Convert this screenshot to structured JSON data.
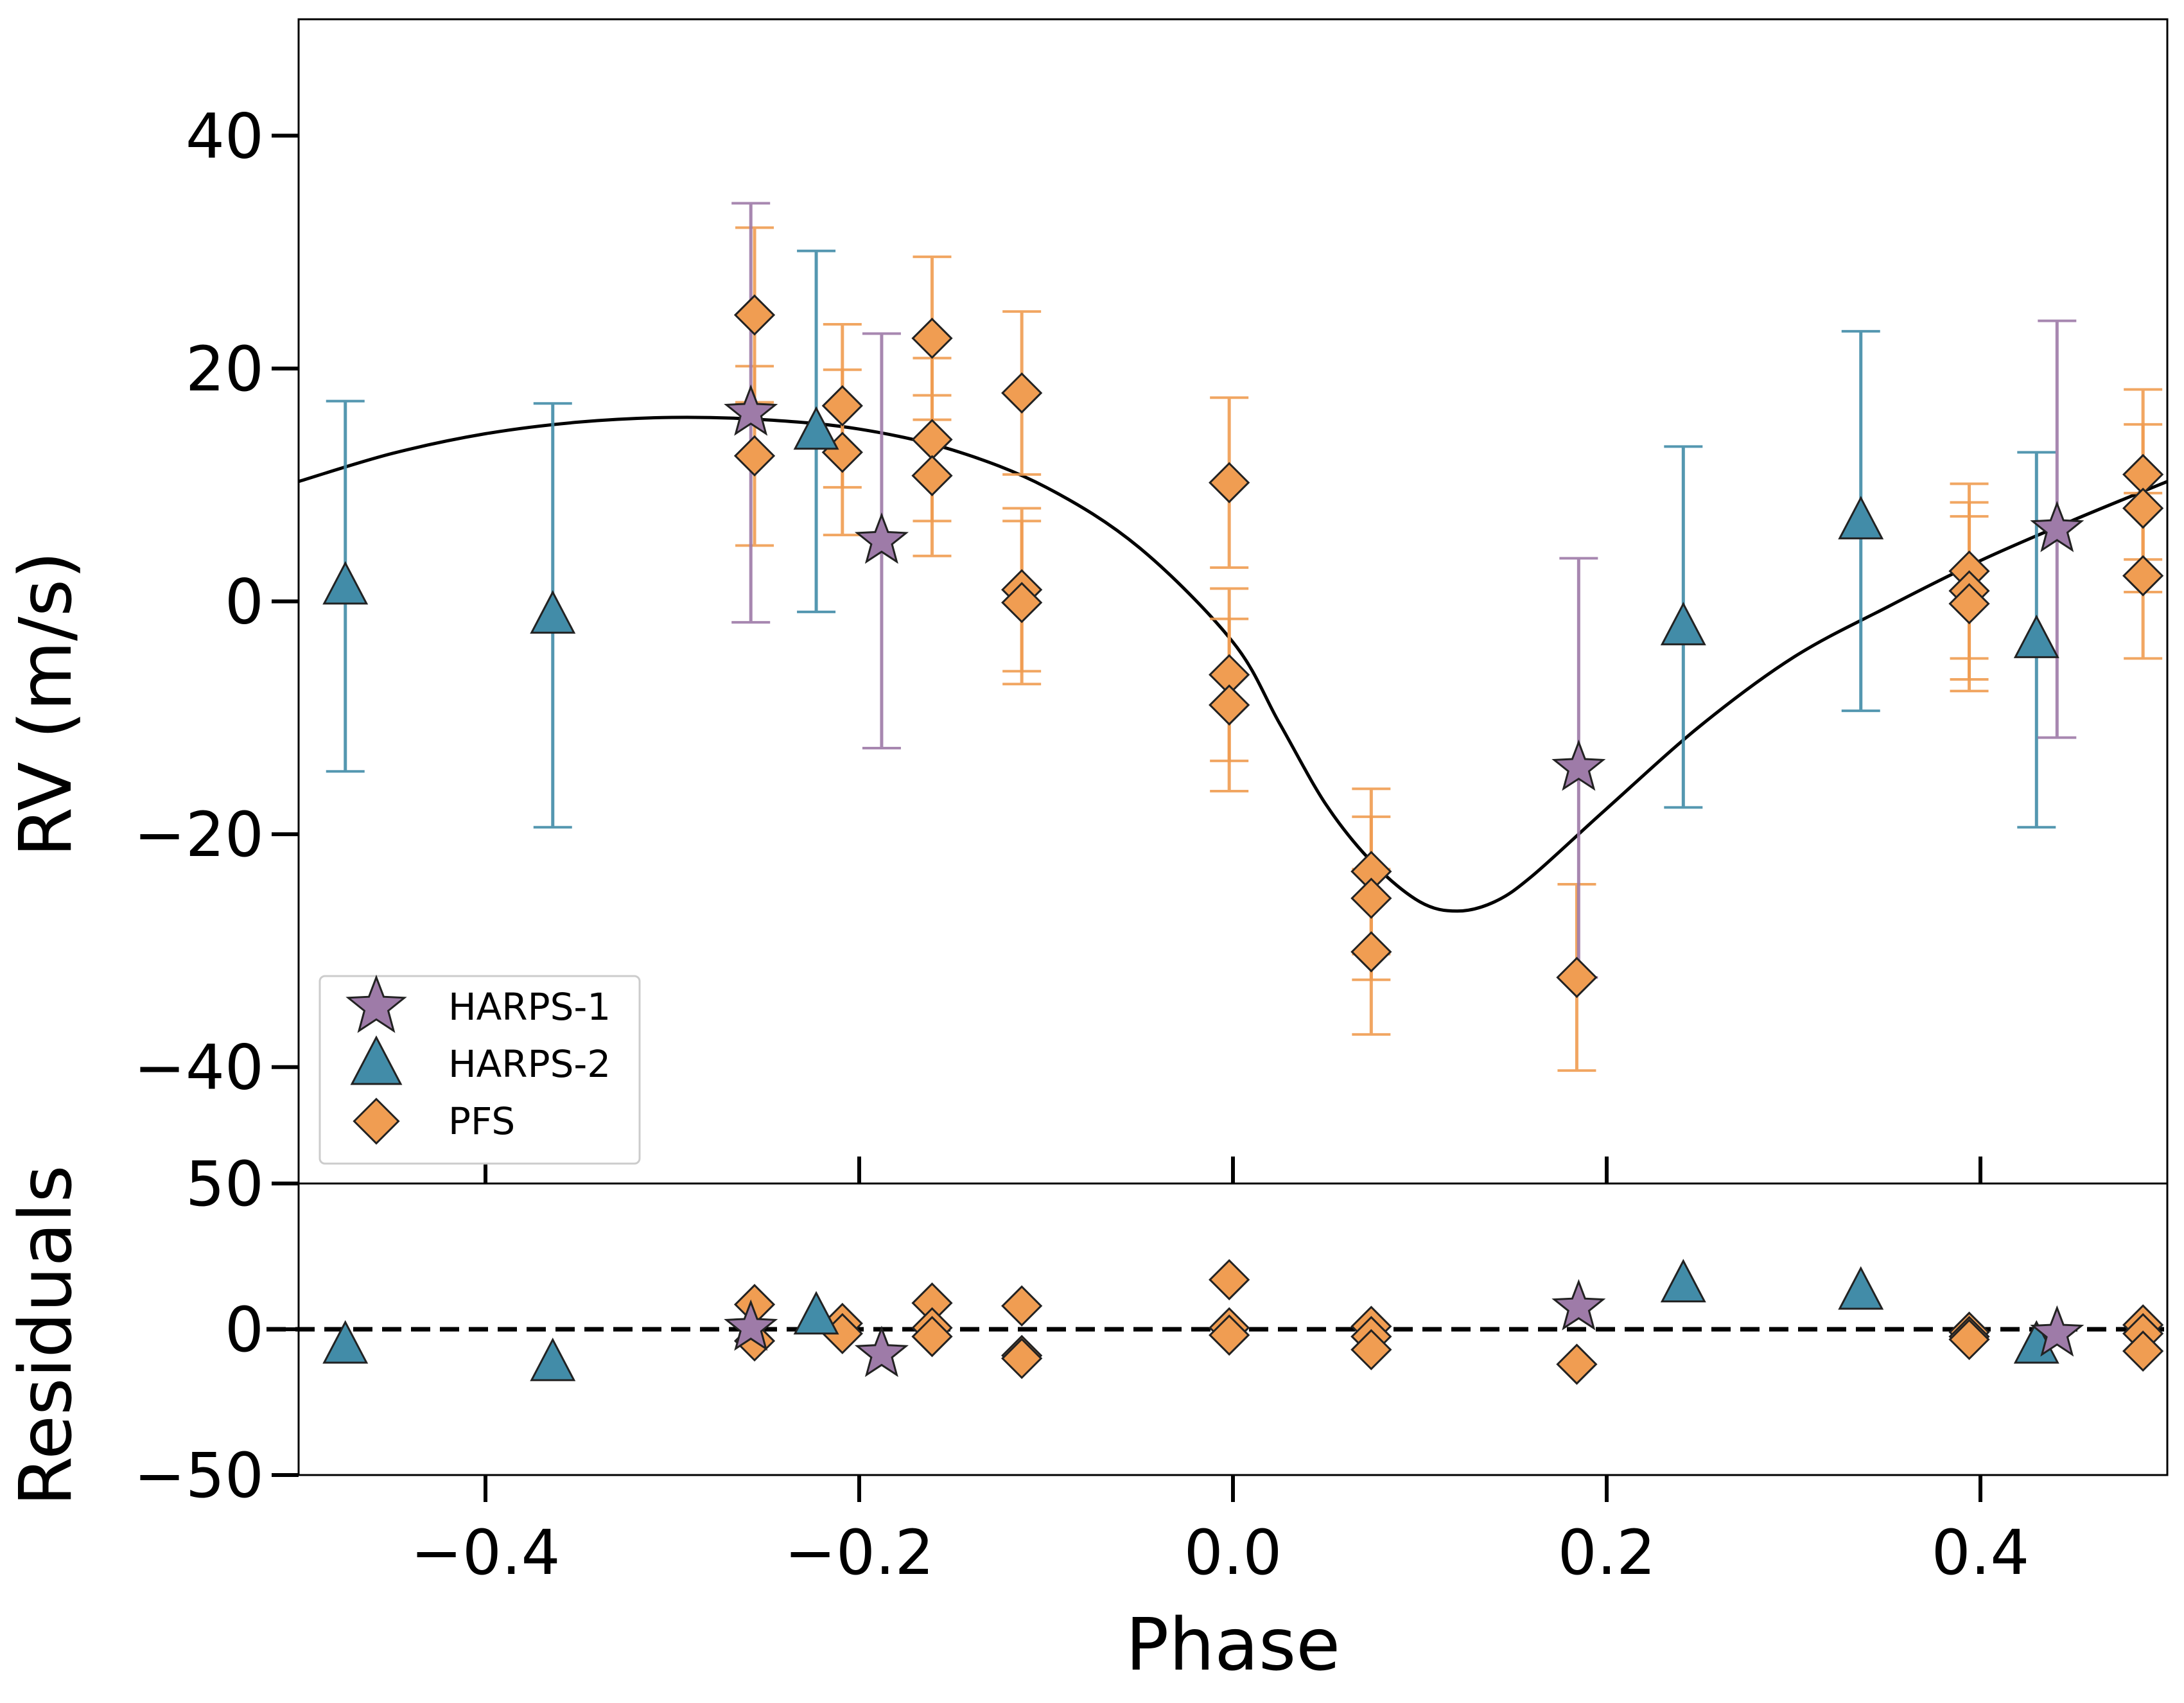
{
  "chart_data": [
    {
      "type": "scatter",
      "panel": "rv",
      "xlabel": "",
      "ylabel": "RV (m/s)",
      "xlim": [
        -0.5,
        0.5
      ],
      "ylim": [
        -50,
        50
      ],
      "yticks": [
        {
          "v": -40,
          "label": "−40"
        },
        {
          "v": -20,
          "label": "−20"
        },
        {
          "v": 0,
          "label": "0"
        },
        {
          "v": 20,
          "label": "20"
        },
        {
          "v": 40,
          "label": "40"
        }
      ],
      "xticks": [
        -0.4,
        -0.2,
        0.0,
        0.2,
        0.4
      ],
      "legend_position": "lower-left",
      "series": [
        {
          "name": "HARPS-1",
          "marker": "star",
          "color": "#9e7ba8",
          "errcolor": "#9e7ba8",
          "points": [
            {
              "x": -0.258,
              "y": 16.2,
              "e": 18.0
            },
            {
              "x": -0.188,
              "y": 5.2,
              "e": 17.8
            },
            {
              "x": 0.185,
              "y": -14.3,
              "e": 18.0
            },
            {
              "x": 0.441,
              "y": 6.2,
              "e": 17.9
            }
          ]
        },
        {
          "name": "HARPS-2",
          "marker": "triangle",
          "color": "#428ca8",
          "errcolor": "#428ca8",
          "points": [
            {
              "x": -0.475,
              "y": 1.3,
              "e": 15.9
            },
            {
              "x": -0.364,
              "y": -1.2,
              "e": 18.2
            },
            {
              "x": -0.223,
              "y": 14.6,
              "e": 15.5
            },
            {
              "x": 0.241,
              "y": -2.2,
              "e": 15.5
            },
            {
              "x": 0.336,
              "y": 6.9,
              "e": 16.3
            },
            {
              "x": 0.43,
              "y": -3.3,
              "e": 16.1
            }
          ]
        },
        {
          "name": "PFS",
          "marker": "diamond",
          "color": "#f09d52",
          "errcolor": "#f09d52",
          "points": [
            {
              "x": -0.256,
              "y": 24.6,
              "e": 7.5
            },
            {
              "x": -0.256,
              "y": 12.5,
              "e": 7.7
            },
            {
              "x": -0.209,
              "y": 16.8,
              "e": 7.0
            },
            {
              "x": -0.209,
              "y": 12.8,
              "e": 7.1
            },
            {
              "x": -0.161,
              "y": 22.6,
              "e": 7.0
            },
            {
              "x": -0.161,
              "y": 13.9,
              "e": 7.0
            },
            {
              "x": -0.161,
              "y": 10.8,
              "e": 6.9
            },
            {
              "x": -0.113,
              "y": 17.9,
              "e": 7.0
            },
            {
              "x": -0.113,
              "y": 1.0,
              "e": 7.0
            },
            {
              "x": -0.113,
              "y": -0.1,
              "e": 7.0
            },
            {
              "x": -0.002,
              "y": 10.2,
              "e": 7.3
            },
            {
              "x": -0.002,
              "y": -6.3,
              "e": 7.4
            },
            {
              "x": -0.002,
              "y": -8.9,
              "e": 7.4
            },
            {
              "x": 0.074,
              "y": -23.2,
              "e": 7.1
            },
            {
              "x": 0.074,
              "y": -25.5,
              "e": 7.0
            },
            {
              "x": 0.074,
              "y": -30.1,
              "e": 7.1
            },
            {
              "x": 0.184,
              "y": -32.3,
              "e": 8.0
            },
            {
              "x": 0.394,
              "y": 2.6,
              "e": 7.5
            },
            {
              "x": 0.394,
              "y": 0.9,
              "e": 7.6
            },
            {
              "x": 0.394,
              "y": -0.2,
              "e": 7.5
            },
            {
              "x": 0.487,
              "y": 10.9,
              "e": 7.3
            },
            {
              "x": 0.487,
              "y": 8.0,
              "e": 7.2
            },
            {
              "x": 0.487,
              "y": 2.2,
              "e": 7.1
            }
          ]
        }
      ],
      "model_curve": {
        "name": "Keplerian model",
        "color": "#000000",
        "points": [
          [
            -0.5,
            10.3
          ],
          [
            -0.45,
            12.7
          ],
          [
            -0.4,
            14.4
          ],
          [
            -0.35,
            15.4
          ],
          [
            -0.3,
            15.8
          ],
          [
            -0.25,
            15.6
          ],
          [
            -0.2,
            14.8
          ],
          [
            -0.15,
            13.0
          ],
          [
            -0.1,
            9.8
          ],
          [
            -0.05,
            4.6
          ],
          [
            0.0,
            -3.5
          ],
          [
            0.025,
            -10.5
          ],
          [
            0.05,
            -17.5
          ],
          [
            0.075,
            -22.5
          ],
          [
            0.1,
            -25.8
          ],
          [
            0.12,
            -26.6
          ],
          [
            0.14,
            -25.8
          ],
          [
            0.16,
            -23.6
          ],
          [
            0.2,
            -17.8
          ],
          [
            0.25,
            -10.7
          ],
          [
            0.3,
            -4.8
          ],
          [
            0.35,
            -0.5
          ],
          [
            0.4,
            3.5
          ],
          [
            0.45,
            7.0
          ],
          [
            0.5,
            10.3
          ]
        ]
      }
    },
    {
      "type": "scatter",
      "panel": "residuals",
      "xlabel": "Phase",
      "ylabel": "Residuals",
      "xlim": [
        -0.5,
        0.5
      ],
      "ylim": [
        -50,
        50
      ],
      "yticks": [
        {
          "v": -50,
          "label": "−50"
        },
        {
          "v": 0,
          "label": "0"
        },
        {
          "v": 50,
          "label": "50"
        }
      ],
      "xticks": [
        {
          "v": -0.4,
          "label": "−0.4"
        },
        {
          "v": -0.2,
          "label": "−0.2"
        },
        {
          "v": 0.0,
          "label": "0.0"
        },
        {
          "v": 0.2,
          "label": "0.2"
        },
        {
          "v": 0.4,
          "label": "0.4"
        }
      ],
      "zero_line": "dashed",
      "series": [
        {
          "name": "HARPS-1",
          "marker": "star",
          "color": "#9e7ba8",
          "points": [
            {
              "x": -0.258,
              "y": 0.5
            },
            {
              "x": -0.188,
              "y": -8.5
            },
            {
              "x": 0.185,
              "y": 7.5
            },
            {
              "x": 0.441,
              "y": -1.5
            }
          ]
        },
        {
          "name": "HARPS-2",
          "marker": "triangle",
          "color": "#428ca8",
          "points": [
            {
              "x": -0.475,
              "y": -5.5
            },
            {
              "x": -0.364,
              "y": -11.5
            },
            {
              "x": -0.223,
              "y": 4.5
            },
            {
              "x": 0.241,
              "y": 15.5
            },
            {
              "x": 0.336,
              "y": 13.0
            },
            {
              "x": 0.43,
              "y": -5.5
            }
          ]
        },
        {
          "name": "PFS",
          "marker": "diamond",
          "color": "#f09d52",
          "points": [
            {
              "x": -0.256,
              "y": 8.5
            },
            {
              "x": -0.256,
              "y": -4.0
            },
            {
              "x": -0.209,
              "y": 2.0
            },
            {
              "x": -0.209,
              "y": -1.5
            },
            {
              "x": -0.161,
              "y": 9.0
            },
            {
              "x": -0.161,
              "y": 0.5
            },
            {
              "x": -0.161,
              "y": -2.5
            },
            {
              "x": -0.113,
              "y": 8.0
            },
            {
              "x": -0.113,
              "y": -9.0
            },
            {
              "x": -0.113,
              "y": -10.0
            },
            {
              "x": -0.002,
              "y": 17.0
            },
            {
              "x": -0.002,
              "y": 0.5
            },
            {
              "x": -0.002,
              "y": -2.0
            },
            {
              "x": 0.074,
              "y": 1.0
            },
            {
              "x": 0.074,
              "y": -2.5
            },
            {
              "x": 0.074,
              "y": -7.0
            },
            {
              "x": 0.184,
              "y": -12.0
            },
            {
              "x": 0.394,
              "y": -1.0
            },
            {
              "x": 0.394,
              "y": -2.5
            },
            {
              "x": 0.394,
              "y": -3.5
            },
            {
              "x": 0.487,
              "y": 1.5
            },
            {
              "x": 0.487,
              "y": -1.5
            },
            {
              "x": 0.487,
              "y": -7.5
            }
          ]
        }
      ]
    }
  ]
}
